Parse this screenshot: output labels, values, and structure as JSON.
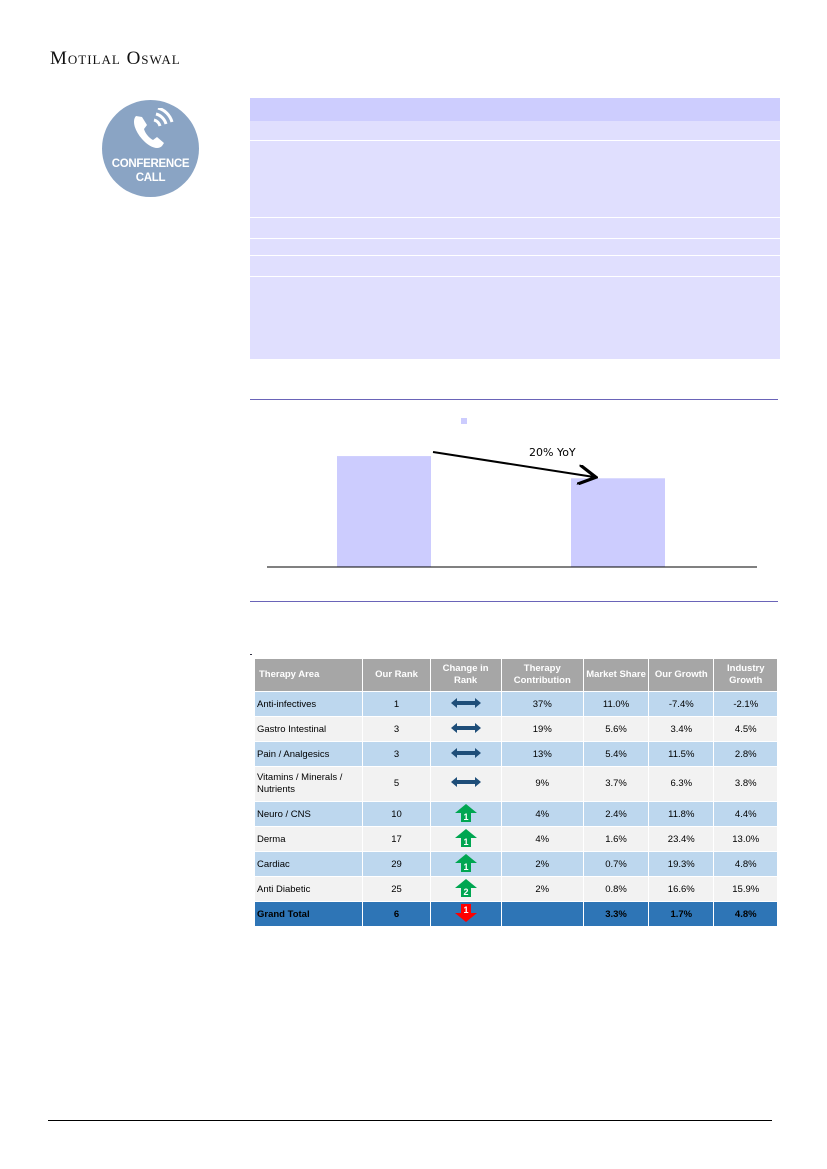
{
  "header": {
    "brand": "Motilal Oswal"
  },
  "badge": {
    "line1": "CONFERENCE",
    "line2": "CALL",
    "icon": "phone-icon"
  },
  "chart_data": {
    "type": "bar",
    "categories": [
      "",
      ""
    ],
    "values": [
      100,
      80
    ],
    "ylim": [
      0,
      110
    ],
    "annotation": "20% YoY",
    "bar_color": "#ccccfe",
    "legend": "top-center",
    "grid": false
  },
  "table": {
    "headers": [
      "Therapy Area",
      "Our Rank",
      "Change in Rank",
      "Therapy Contribution",
      "Market Share",
      "Our Growth",
      "Industry Growth"
    ],
    "rows": [
      {
        "area": "Anti-infectives",
        "rank": "1",
        "change": "same",
        "change_label": "",
        "contrib": "37%",
        "share": "11.0%",
        "our": "-7.4%",
        "ind": "-2.1%"
      },
      {
        "area": "Gastro Intestinal",
        "rank": "3",
        "change": "same",
        "change_label": "",
        "contrib": "19%",
        "share": "5.6%",
        "our": "3.4%",
        "ind": "4.5%"
      },
      {
        "area": "Pain / Analgesics",
        "rank": "3",
        "change": "same",
        "change_label": "",
        "contrib": "13%",
        "share": "5.4%",
        "our": "11.5%",
        "ind": "2.8%"
      },
      {
        "area": "Vitamins / Minerals / Nutrients",
        "rank": "5",
        "change": "same",
        "change_label": "",
        "contrib": "9%",
        "share": "3.7%",
        "our": "6.3%",
        "ind": "3.8%"
      },
      {
        "area": "Neuro / CNS",
        "rank": "10",
        "change": "up",
        "change_label": "1",
        "contrib": "4%",
        "share": "2.4%",
        "our": "11.8%",
        "ind": "4.4%"
      },
      {
        "area": "Derma",
        "rank": "17",
        "change": "up",
        "change_label": "1",
        "contrib": "4%",
        "share": "1.6%",
        "our": "23.4%",
        "ind": "13.0%"
      },
      {
        "area": "Cardiac",
        "rank": "29",
        "change": "up",
        "change_label": "1",
        "contrib": "2%",
        "share": "0.7%",
        "our": "19.3%",
        "ind": "4.8%"
      },
      {
        "area": "Anti Diabetic",
        "rank": "25",
        "change": "up",
        "change_label": "2",
        "contrib": "2%",
        "share": "0.8%",
        "our": "16.6%",
        "ind": "15.9%"
      },
      {
        "area": "Grand Total",
        "rank": "6",
        "change": "down",
        "change_label": "1",
        "contrib": "",
        "share": "3.3%",
        "our": "1.7%",
        "ind": "4.8%"
      }
    ]
  },
  "colors": {
    "up": "#00a651",
    "down": "#ff0000",
    "same": "#1f4e79",
    "total": "#2e75b6"
  }
}
